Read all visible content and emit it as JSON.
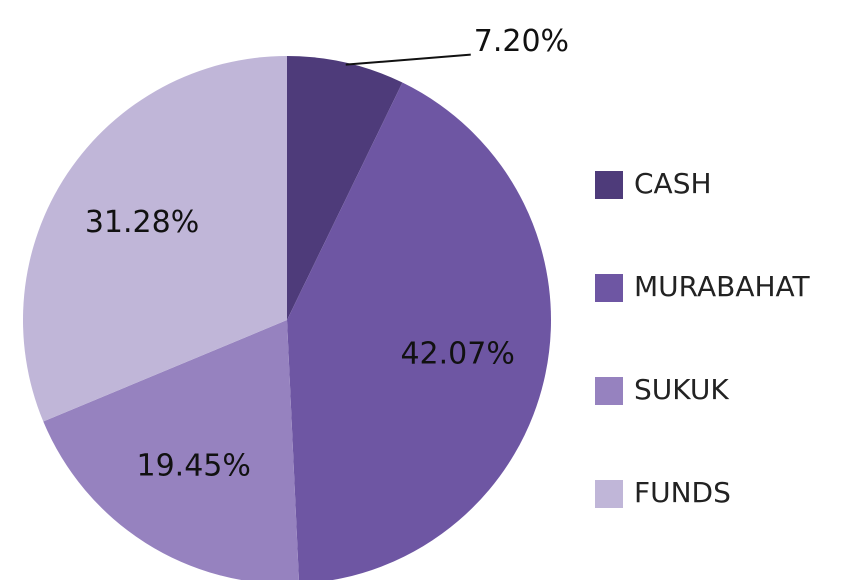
{
  "chart_data": {
    "type": "pie",
    "categories": [
      "CASH",
      "MURABAHAT",
      "SUKUK",
      "FUNDS"
    ],
    "values": [
      7.2,
      42.07,
      19.45,
      31.28
    ],
    "value_labels": [
      "7.20%",
      "42.07%",
      "19.45%",
      "31.28%"
    ],
    "colors": [
      "#4e3b7a",
      "#6e56a3",
      "#9682bf",
      "#c0b6d8"
    ],
    "legend": "right"
  }
}
